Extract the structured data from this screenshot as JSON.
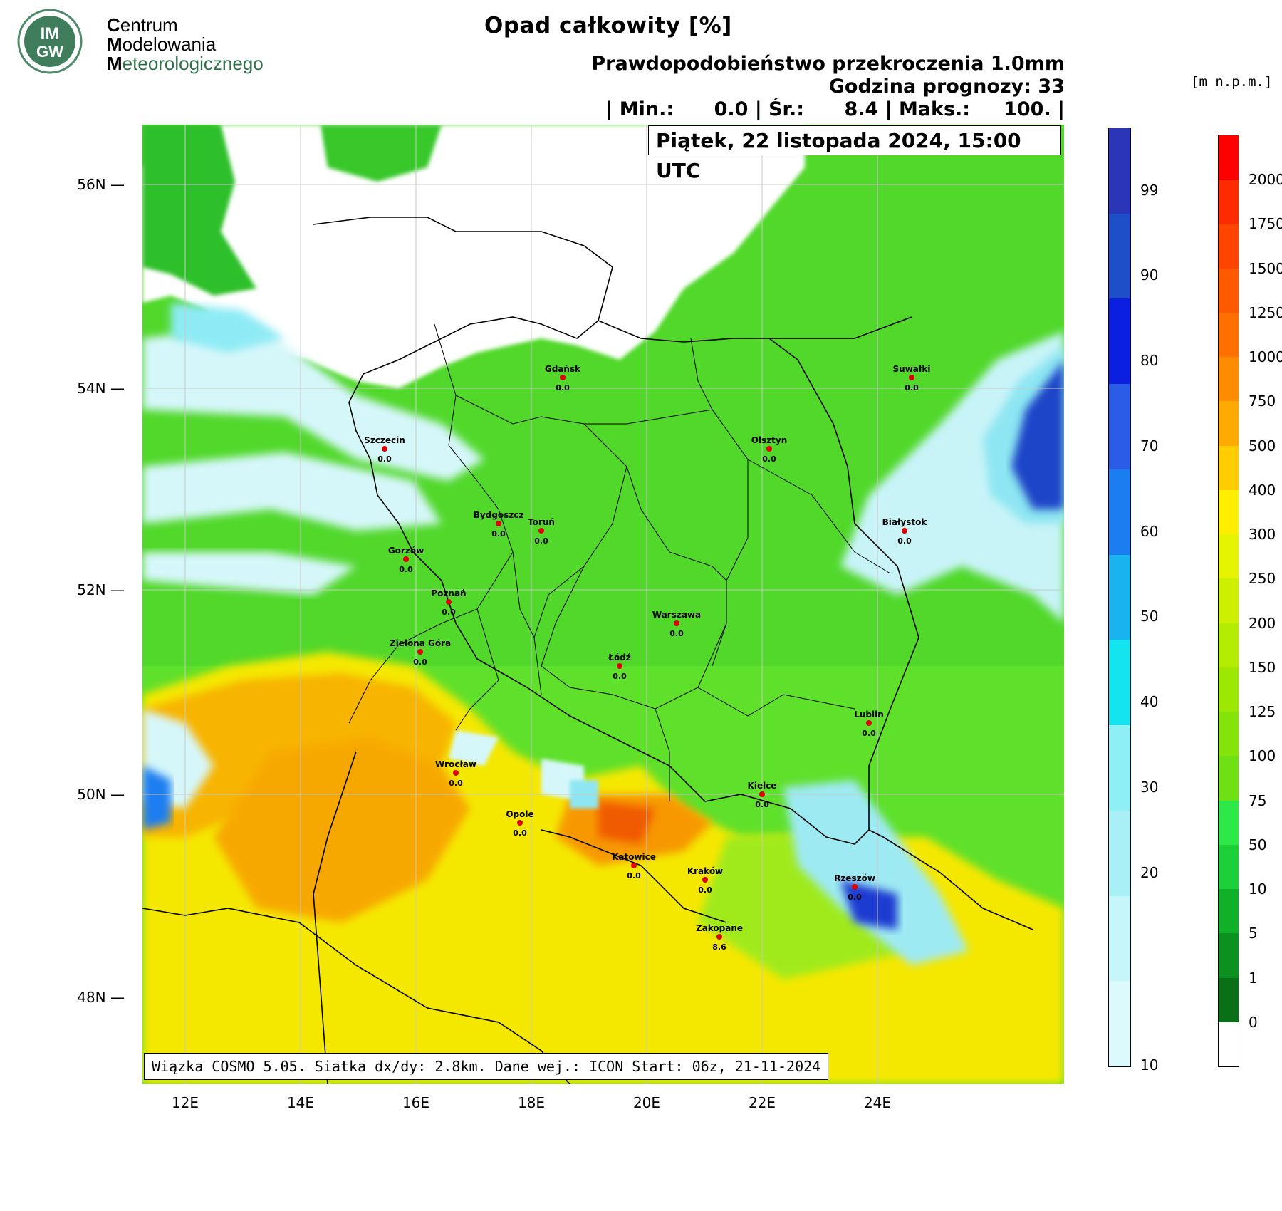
{
  "logo": {
    "badge_text_1": "IM",
    "badge_text_2": "GW",
    "line1_initial": "C",
    "line1_rest": "entrum",
    "line2_initial": "M",
    "line2_rest": "odelowania",
    "line3_initial": "M",
    "line3_rest": "eteorologicznego"
  },
  "header": {
    "title": "Opad całkowity [%]",
    "subtitle": "Prawdopodobieństwo przekroczenia 1.0mm",
    "forecast_hour": "Godzina prognozy: 33",
    "stats": "| Min.:      0.0 | Śr.:      8.4 | Maks.:     100. |",
    "date": "Piątek, 22 listopada 2024, 15:00 UTC"
  },
  "footer": {
    "text": "Wiązka COSMO 5.05. Siatka dx/dy: 2.8km. Dane wej.: ICON Start: 06z, 21-11-2024"
  },
  "map": {
    "lat_labels": [
      "56N",
      "54N",
      "52N",
      "50N",
      "48N"
    ],
    "lon_labels": [
      "12E",
      "14E",
      "16E",
      "18E",
      "20E",
      "22E",
      "24E"
    ],
    "cities": [
      {
        "name": "Gdańsk",
        "value": "0.0"
      },
      {
        "name": "Suwałki",
        "value": "0.0"
      },
      {
        "name": "Olsztyn",
        "value": "0.0"
      },
      {
        "name": "Szczecin",
        "value": "0.0"
      },
      {
        "name": "Bydgoszcz",
        "value": "0.0"
      },
      {
        "name": "Toruń",
        "value": "0.0"
      },
      {
        "name": "Białystok",
        "value": "0.0"
      },
      {
        "name": "Gorzów",
        "value": "0.0"
      },
      {
        "name": "Poznań",
        "value": "0.0"
      },
      {
        "name": "Warszawa",
        "value": "0.0"
      },
      {
        "name": "Zielona Góra",
        "value": "0.0"
      },
      {
        "name": "Łódź",
        "value": "0.0"
      },
      {
        "name": "Lublin",
        "value": "0.0"
      },
      {
        "name": "Wrocław",
        "value": "0.0"
      },
      {
        "name": "Kielce",
        "value": "0.0"
      },
      {
        "name": "Opole",
        "value": "0.0"
      },
      {
        "name": "Katowice",
        "value": "0.0"
      },
      {
        "name": "Kraków",
        "value": "0.0"
      },
      {
        "name": "Rzeszów",
        "value": "0.0"
      },
      {
        "name": "Zakopane",
        "value": "8.6"
      }
    ]
  },
  "probability_colorbar": {
    "labels": [
      "99",
      "90",
      "80",
      "70",
      "60",
      "50",
      "40",
      "30",
      "20",
      "10"
    ],
    "colors": [
      "#2a35b8",
      "#1e4fc8",
      "#0a1fe0",
      "#2b5ce8",
      "#1a7ef0",
      "#19b4f0",
      "#13e4ee",
      "#8ef0f4",
      "#a8f0f6",
      "#c6f6fa",
      "#dcfafc"
    ]
  },
  "elevation_colorbar": {
    "unit": "[m n.p.m.]",
    "labels": [
      "2000",
      "1750",
      "1500",
      "1250",
      "1000",
      "750",
      "500",
      "400",
      "300",
      "250",
      "200",
      "150",
      "125",
      "100",
      "75",
      "50",
      "10",
      "5",
      "1",
      "0"
    ],
    "colors": [
      "#ff0000",
      "#ff2a00",
      "#ff4400",
      "#ff5a00",
      "#ff7000",
      "#ff8c00",
      "#ffaa00",
      "#ffcc00",
      "#ffee00",
      "#e6f400",
      "#ccf000",
      "#b4ec00",
      "#9ce800",
      "#84e40a",
      "#6ee014",
      "#2ee84a",
      "#1cd03a",
      "#10b028",
      "#0c9020",
      "#0a7018",
      "#ffffff"
    ]
  }
}
